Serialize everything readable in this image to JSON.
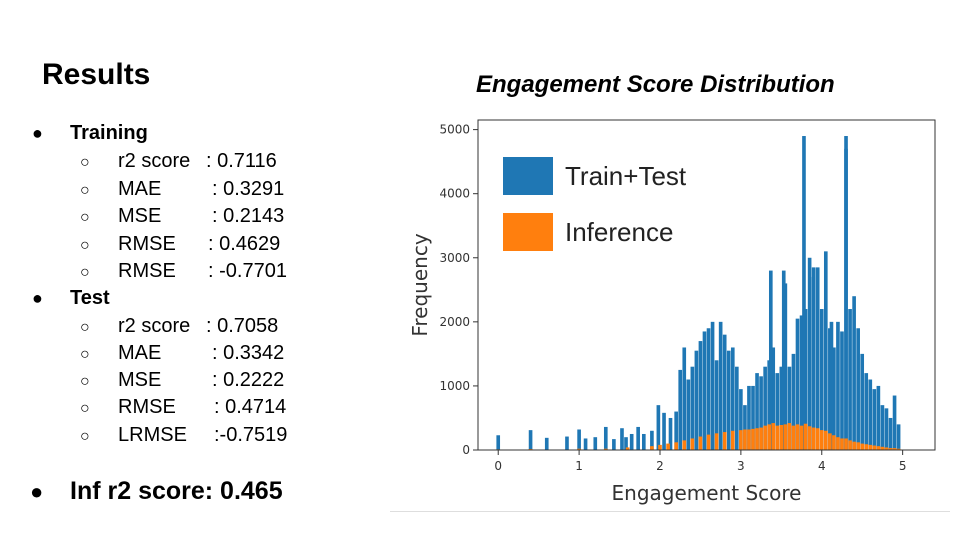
{
  "slide": {
    "title": "Results",
    "bullet": "●",
    "sub_bullet": "○",
    "sections": [
      {
        "heading": "Training",
        "items": [
          {
            "label": "r2 score",
            "value": ": 0.7116"
          },
          {
            "label": "MAE",
            "value": ": 0.3291"
          },
          {
            "label": "MSE",
            "value": ": 0.2143"
          },
          {
            "label": "RMSE",
            "value": ": 0.4629"
          },
          {
            "label": "RMSE",
            "value": ": -0.7701"
          }
        ]
      },
      {
        "heading": "Test",
        "items": [
          {
            "label": "r2 score",
            "value": ": 0.7058"
          },
          {
            "label": "MAE",
            "value": ": 0.3342"
          },
          {
            "label": "MSE",
            "value": ": 0.2222"
          },
          {
            "label": "RMSE",
            "value": ": 0.4714"
          },
          {
            "label": "LRMSE",
            "value": ":-0.7519"
          }
        ]
      }
    ],
    "inference": "Inf r2 score: 0.465"
  },
  "chart_data": {
    "type": "bar",
    "title": "Engagement Score Distribution",
    "xlabel": "Engagement Score",
    "ylabel": "Frequency",
    "xlim": [
      -0.25,
      5.4
    ],
    "ylim": [
      0,
      5150
    ],
    "xticks": [
      0,
      1,
      2,
      3,
      4,
      5
    ],
    "yticks": [
      0,
      1000,
      2000,
      3000,
      4000,
      5000
    ],
    "grid": false,
    "legend_position": "top-left",
    "colors": {
      "train_test": "#1f77b4",
      "inference": "#ff7f0e"
    },
    "series": [
      {
        "name": "Train+Test",
        "color": "#1f77b4",
        "bars": [
          [
            0.0,
            230
          ],
          [
            0.4,
            310
          ],
          [
            0.6,
            190
          ],
          [
            0.85,
            210
          ],
          [
            1.0,
            320
          ],
          [
            1.08,
            180
          ],
          [
            1.2,
            200
          ],
          [
            1.33,
            360
          ],
          [
            1.43,
            170
          ],
          [
            1.53,
            340
          ],
          [
            1.58,
            200
          ],
          [
            1.65,
            250
          ],
          [
            1.73,
            360
          ],
          [
            1.8,
            250
          ],
          [
            1.9,
            300
          ],
          [
            1.98,
            700
          ],
          [
            2.05,
            580
          ],
          [
            2.13,
            500
          ],
          [
            2.2,
            600
          ],
          [
            2.25,
            1250
          ],
          [
            2.3,
            1600
          ],
          [
            2.35,
            1100
          ],
          [
            2.4,
            1300
          ],
          [
            2.45,
            1550
          ],
          [
            2.5,
            1700
          ],
          [
            2.55,
            1850
          ],
          [
            2.6,
            1900
          ],
          [
            2.65,
            2000
          ],
          [
            2.7,
            1400
          ],
          [
            2.75,
            2000
          ],
          [
            2.8,
            1800
          ],
          [
            2.85,
            1550
          ],
          [
            2.9,
            1600
          ],
          [
            2.95,
            1300
          ],
          [
            3.0,
            950
          ],
          [
            3.05,
            700
          ],
          [
            3.1,
            1000
          ],
          [
            3.15,
            1000
          ],
          [
            3.2,
            1200
          ],
          [
            3.25,
            1150
          ],
          [
            3.3,
            1300
          ],
          [
            3.35,
            1400
          ],
          [
            3.4,
            1600
          ],
          [
            3.45,
            1200
          ],
          [
            3.5,
            1300
          ],
          [
            3.55,
            2600
          ],
          [
            3.6,
            1300
          ],
          [
            3.65,
            1500
          ],
          [
            3.7,
            2050
          ],
          [
            3.75,
            2100
          ],
          [
            3.8,
            2200
          ],
          [
            3.85,
            3000
          ],
          [
            3.9,
            2700
          ],
          [
            3.95,
            2850
          ],
          [
            4.0,
            2200
          ],
          [
            4.05,
            3100
          ],
          [
            4.1,
            1900
          ],
          [
            4.15,
            1600
          ],
          [
            4.2,
            2000
          ],
          [
            4.25,
            1850
          ],
          [
            4.3,
            4700
          ],
          [
            4.35,
            2200
          ],
          [
            4.4,
            2400
          ],
          [
            4.45,
            1900
          ],
          [
            4.5,
            1500
          ],
          [
            4.55,
            1200
          ],
          [
            4.6,
            1100
          ],
          [
            4.65,
            950
          ],
          [
            4.7,
            1000
          ],
          [
            4.75,
            700
          ],
          [
            4.8,
            650
          ],
          [
            4.85,
            500
          ],
          [
            4.9,
            850
          ],
          [
            4.95,
            400
          ]
        ],
        "spikes": [
          [
            3.78,
            4900
          ],
          [
            4.3,
            4900
          ],
          [
            3.9,
            2850
          ],
          [
            4.12,
            2000
          ],
          [
            3.53,
            2800
          ],
          [
            3.37,
            2800
          ]
        ]
      },
      {
        "name": "Inference",
        "color": "#ff7f0e",
        "bars": [
          [
            0.0,
            10
          ],
          [
            0.4,
            15
          ],
          [
            1.0,
            20
          ],
          [
            1.33,
            20
          ],
          [
            1.6,
            40
          ],
          [
            1.9,
            60
          ],
          [
            2.0,
            80
          ],
          [
            2.1,
            100
          ],
          [
            2.2,
            120
          ],
          [
            2.3,
            150
          ],
          [
            2.4,
            180
          ],
          [
            2.5,
            210
          ],
          [
            2.6,
            240
          ],
          [
            2.7,
            260
          ],
          [
            2.8,
            280
          ],
          [
            2.9,
            300
          ],
          [
            3.0,
            310
          ],
          [
            3.05,
            320
          ],
          [
            3.1,
            320
          ],
          [
            3.15,
            330
          ],
          [
            3.2,
            340
          ],
          [
            3.25,
            350
          ],
          [
            3.3,
            380
          ],
          [
            3.35,
            400
          ],
          [
            3.4,
            420
          ],
          [
            3.45,
            380
          ],
          [
            3.5,
            390
          ],
          [
            3.55,
            400
          ],
          [
            3.6,
            420
          ],
          [
            3.65,
            380
          ],
          [
            3.7,
            400
          ],
          [
            3.75,
            380
          ],
          [
            3.8,
            410
          ],
          [
            3.85,
            370
          ],
          [
            3.9,
            350
          ],
          [
            3.95,
            340
          ],
          [
            4.0,
            310
          ],
          [
            4.05,
            300
          ],
          [
            4.1,
            260
          ],
          [
            4.15,
            230
          ],
          [
            4.2,
            200
          ],
          [
            4.25,
            180
          ],
          [
            4.3,
            180
          ],
          [
            4.35,
            150
          ],
          [
            4.4,
            130
          ],
          [
            4.45,
            120
          ],
          [
            4.5,
            100
          ],
          [
            4.55,
            90
          ],
          [
            4.6,
            80
          ],
          [
            4.65,
            70
          ],
          [
            4.7,
            60
          ],
          [
            4.75,
            50
          ],
          [
            4.8,
            40
          ],
          [
            4.85,
            30
          ],
          [
            4.9,
            30
          ],
          [
            4.95,
            20
          ]
        ]
      }
    ]
  }
}
